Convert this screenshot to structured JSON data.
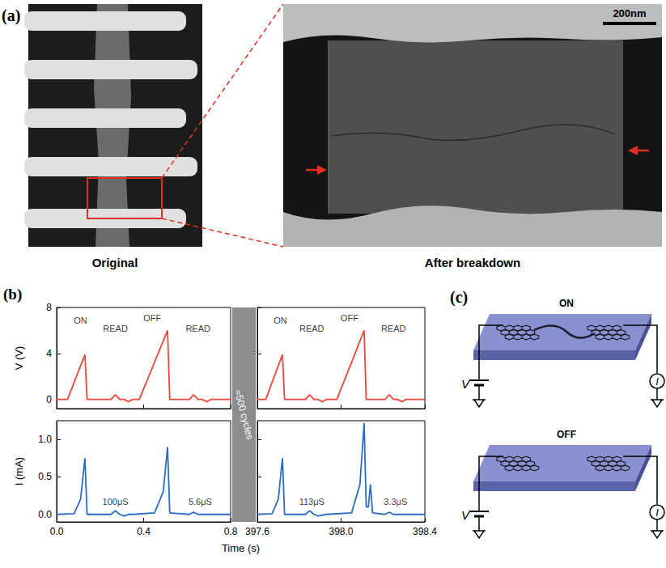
{
  "figure": {
    "panel_a": {
      "letter": "(a)",
      "captions": [
        "Original",
        "After breakdown"
      ],
      "scale_bar": "200nm"
    },
    "panel_b": {
      "letter": "(b)",
      "break_label": "≈500 cycles"
    },
    "panel_c": {
      "letter": "(c)",
      "states": [
        "ON",
        "OFF"
      ],
      "source": "V",
      "meter": "I"
    }
  },
  "chart_data": [
    {
      "type": "line",
      "ylabel": "V (V)",
      "color": "#e8473b",
      "ylim": [
        -0.8,
        8
      ],
      "yticks": [
        0,
        4,
        8
      ],
      "tick_labels": "y",
      "segments": [
        {
          "xlim": [
            0,
            0.8
          ],
          "xticks": [
            {
              "value": 0,
              "label": "0.0"
            },
            0.4,
            0.8
          ],
          "x": [
            0,
            0.05,
            0.13,
            0.14,
            0.25,
            0.27,
            0.29,
            0.31,
            0.33,
            0.35,
            0.38,
            0.51,
            0.52,
            0.61,
            0.63,
            0.65,
            0.67,
            0.69,
            0.71,
            0.8
          ],
          "values": [
            0,
            0,
            3.9,
            0,
            0,
            0.4,
            0,
            0,
            -0.2,
            0,
            0,
            6.0,
            0,
            0,
            0.4,
            0,
            0,
            -0.2,
            0,
            0
          ]
        },
        {
          "xlim": [
            397.6,
            398.4
          ],
          "xticks": [
            397.6,
            {
              "value": 398,
              "label": "398.0"
            },
            398.4
          ],
          "x": [
            397.6,
            397.64,
            397.72,
            397.73,
            397.83,
            397.85,
            397.87,
            397.89,
            397.91,
            397.93,
            397.98,
            398.11,
            398.12,
            398.21,
            398.23,
            398.25,
            398.27,
            398.29,
            398.31,
            398.4
          ],
          "values": [
            0,
            0,
            3.9,
            0,
            0,
            0.4,
            0,
            0,
            -0.2,
            0,
            0,
            6.0,
            0,
            0,
            0.4,
            0,
            0,
            -0.2,
            0,
            0
          ]
        }
      ],
      "annotations": [
        {
          "text": "ON",
          "x": 0.11,
          "y": 6.9,
          "segment": 0
        },
        {
          "text": "READ",
          "x": 0.27,
          "y": 6.2,
          "segment": 0
        },
        {
          "text": "OFF",
          "x": 0.44,
          "y": 7.1,
          "segment": 0
        },
        {
          "text": "READ",
          "x": 0.65,
          "y": 6.2,
          "segment": 0
        },
        {
          "text": "ON",
          "x": 397.71,
          "y": 6.9,
          "segment": 1
        },
        {
          "text": "READ",
          "x": 397.86,
          "y": 6.2,
          "segment": 1
        },
        {
          "text": "OFF",
          "x": 398.04,
          "y": 7.1,
          "segment": 1
        },
        {
          "text": "READ",
          "x": 398.25,
          "y": 6.2,
          "segment": 1
        }
      ]
    },
    {
      "type": "line",
      "ylabel": "I (mA)",
      "xlabel": "Time (s)",
      "color": "#2b6cc4",
      "ylim": [
        -0.1,
        1.25
      ],
      "yticks": [
        {
          "value": 0,
          "label": "0.0"
        },
        0.5,
        {
          "value": 1,
          "label": "1.0"
        }
      ],
      "segments": [
        {
          "xlim": [
            0,
            0.8
          ],
          "xticks": [
            {
              "value": 0,
              "label": "0.0"
            },
            0.4,
            0.8
          ],
          "x": [
            0,
            0.08,
            0.11,
            0.13,
            0.14,
            0.25,
            0.27,
            0.29,
            0.31,
            0.33,
            0.35,
            0.45,
            0.49,
            0.51,
            0.52,
            0.61,
            0.63,
            0.65,
            0.8
          ],
          "values": [
            0,
            0.01,
            0.2,
            0.75,
            0,
            0,
            0.05,
            0,
            -0.02,
            0,
            0,
            0.02,
            0.3,
            0.9,
            0.02,
            0,
            0.03,
            0,
            0
          ]
        },
        {
          "xlim": [
            397.6,
            398.4
          ],
          "xticks": [
            397.6,
            {
              "value": 398,
              "label": "398.0"
            },
            398.4
          ],
          "x": [
            397.6,
            397.67,
            397.7,
            397.72,
            397.73,
            397.83,
            397.85,
            397.87,
            397.89,
            397.93,
            398.05,
            398.09,
            398.11,
            398.12,
            398.13,
            398.14,
            398.15,
            398.21,
            398.23,
            398.25,
            398.4
          ],
          "values": [
            0,
            0.01,
            0.2,
            0.75,
            0,
            0,
            0.05,
            0,
            -0.02,
            0,
            0.02,
            0.4,
            1.22,
            0.1,
            0.1,
            0.4,
            0.02,
            0,
            0.03,
            0,
            0
          ]
        }
      ],
      "annotations": [
        {
          "text": "100μS",
          "x": 0.27,
          "y": 0.17,
          "segment": 0
        },
        {
          "text": "5.6μS",
          "x": 0.66,
          "y": 0.17,
          "segment": 0
        },
        {
          "text": "113μS",
          "x": 397.86,
          "y": 0.17,
          "segment": 1
        },
        {
          "text": "3.3μS",
          "x": 398.26,
          "y": 0.17,
          "segment": 1
        }
      ]
    }
  ]
}
